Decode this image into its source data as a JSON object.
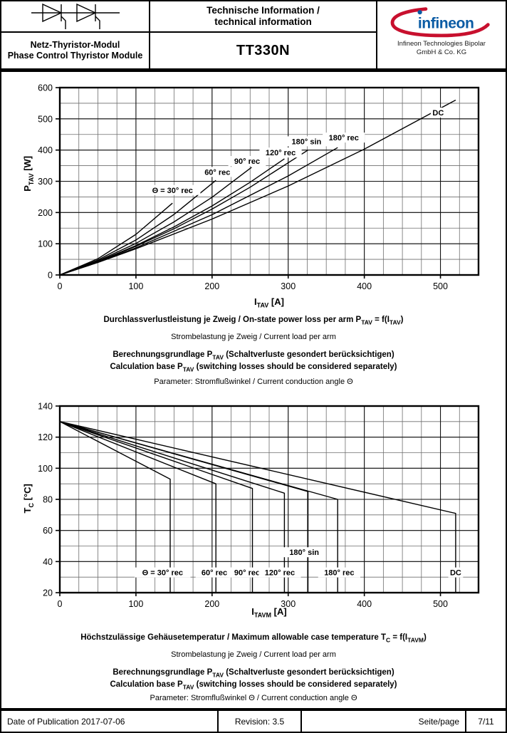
{
  "header": {
    "product_family_de": "Netz-Thyristor-Modul",
    "product_family_en": "Phase Control Thyristor Module",
    "doc_title_de": "Technische Information /",
    "doc_title_en": "technical information",
    "part_number": "TT330N",
    "logo_text": "infineon",
    "company_line1": "Infineon Technologies Bipolar",
    "company_line2": "GmbH & Co. KG"
  },
  "colors": {
    "logo_blue": "#0A5BA4",
    "logo_red": "#C8102E",
    "grid_minor": "#6e6e6e",
    "grid_major": "#111111",
    "curve": "#000000"
  },
  "top_section": {
    "ylabel": {
      "p1": "P",
      "s1": "TAV",
      "p2": " [W]"
    },
    "xlabel": {
      "p1": "I",
      "s1": "TAV",
      "p2": " [A]"
    },
    "caption_main": {
      "p1": "Durchlassverlustleistung je Zweig / On-state power loss per arm P",
      "s1": "TAV",
      "p2": " = f(I",
      "s2": "TAV",
      "p3": ")"
    },
    "caption_sub": "Strombelastung je Zweig / Current load per arm",
    "calc_de": {
      "p1": "Berechnungsgrundlage P",
      "s1": "TAV",
      "p2": " (Schaltverluste gesondert berücksichtigen)"
    },
    "calc_en": {
      "p1": "Calculation base P",
      "s1": "TAV",
      "p2": " (switching losses should be considered separately)"
    },
    "parameter": "Parameter: Stromflußwinkel / Current conduction angle Θ"
  },
  "bottom_section": {
    "ylabel": {
      "p1": "T",
      "s1": "C",
      "p2": " [°C]"
    },
    "xlabel": {
      "p1": "I",
      "s1": "TAVM",
      "p2": " [A]"
    },
    "caption_main": {
      "p1": "Höchstzulässige Gehäusetemperatur / Maximum allowable case temperature T",
      "s1": "C",
      "p2": " = f(I",
      "s2": "TAVM",
      "p3": ")"
    },
    "caption_sub": "Strombelastung je Zweig / Current load per arm",
    "calc_de": {
      "p1": "Berechnungsgrundlage P",
      "s1": "TAV",
      "p2": " (Schaltverluste gesondert berücksichtigen)"
    },
    "calc_en": {
      "p1": "Calculation base P",
      "s1": "TAV",
      "p2": " (switching losses should be considered separately)"
    },
    "parameter": "Parameter: Stromflußwinkel Θ / Current conduction angle Θ"
  },
  "footer": {
    "date": "Date of Publication 2017-07-06",
    "revision": "Revision: 3.5",
    "page_label": "Seite/page",
    "page_number": "7/11"
  },
  "chart_data": [
    {
      "type": "line",
      "title": "On-state power loss per arm PTAV = f(ITAV)",
      "xlabel": "ITAV [A]",
      "ylabel": "PTAV [W]",
      "xlim": [
        0,
        550
      ],
      "ylim": [
        0,
        600
      ],
      "x_ticks": [
        0,
        100,
        200,
        300,
        400,
        500
      ],
      "y_ticks": [
        0,
        100,
        200,
        300,
        400,
        500,
        600
      ],
      "x_minor_step": 25,
      "y_minor_step": 50,
      "grid": true,
      "legend_position": "inline-labels",
      "series": [
        {
          "name": "Θ = 30° rec",
          "points": [
            [
              0,
              0
            ],
            [
              50,
              52
            ],
            [
              100,
              130
            ],
            [
              148,
              230
            ]
          ]
        },
        {
          "name": "60° rec",
          "points": [
            [
              0,
              0
            ],
            [
              50,
              48
            ],
            [
              100,
              112
            ],
            [
              150,
              194
            ],
            [
              205,
              303
            ]
          ]
        },
        {
          "name": "90° rec",
          "points": [
            [
              0,
              0
            ],
            [
              50,
              45
            ],
            [
              100,
              101
            ],
            [
              150,
              170
            ],
            [
              200,
              249
            ],
            [
              252,
              345
            ]
          ]
        },
        {
          "name": "120° rec",
          "points": [
            [
              0,
              0
            ],
            [
              50,
              43
            ],
            [
              100,
              94
            ],
            [
              150,
              154
            ],
            [
              200,
              221
            ],
            [
              250,
              297
            ],
            [
              295,
              372
            ]
          ]
        },
        {
          "name": "180° sin",
          "points": [
            [
              0,
              0
            ],
            [
              50,
              42
            ],
            [
              100,
              92
            ],
            [
              150,
              148
            ],
            [
              200,
              211
            ],
            [
              250,
              281
            ],
            [
              326,
              400
            ]
          ]
        },
        {
          "name": "180° rec",
          "points": [
            [
              0,
              0
            ],
            [
              50,
              41
            ],
            [
              100,
              87
            ],
            [
              200,
              193
            ],
            [
              300,
              317
            ],
            [
              365,
              408
            ]
          ]
        },
        {
          "name": "DC",
          "points": [
            [
              0,
              0
            ],
            [
              50,
              40
            ],
            [
              100,
              84
            ],
            [
              200,
              179
            ],
            [
              300,
              285
            ],
            [
              400,
              403
            ],
            [
              520,
              560
            ]
          ]
        }
      ],
      "labels": [
        {
          "text": "Θ = 30° rec",
          "x": 148,
          "y": 272
        },
        {
          "text": "60° rec",
          "x": 207,
          "y": 330
        },
        {
          "text": "90° rec",
          "x": 246,
          "y": 365
        },
        {
          "text": "120° rec",
          "x": 290,
          "y": 392
        },
        {
          "text": "180° sin",
          "x": 324,
          "y": 428
        },
        {
          "text": "180° rec",
          "x": 373,
          "y": 440
        },
        {
          "text": "DC",
          "x": 497,
          "y": 520
        }
      ]
    },
    {
      "type": "line",
      "title": "Maximum allowable case temperature TC = f(ITAVM)",
      "xlabel": "ITAVM [A]",
      "ylabel": "TC [°C]",
      "xlim": [
        0,
        550
      ],
      "ylim": [
        20,
        140
      ],
      "x_ticks": [
        0,
        100,
        200,
        300,
        400,
        500
      ],
      "y_ticks": [
        20,
        40,
        60,
        80,
        100,
        120,
        140
      ],
      "x_minor_step": 25,
      "y_minor_step": 10,
      "grid": true,
      "legend_position": "inline-labels",
      "series": [
        {
          "name": "Θ = 30° rec",
          "points": [
            [
              0,
              130
            ],
            [
              145,
              93
            ],
            [
              145,
              20
            ]
          ]
        },
        {
          "name": "60° rec",
          "points": [
            [
              0,
              130
            ],
            [
              205,
              90
            ],
            [
              205,
              20
            ]
          ]
        },
        {
          "name": "90° rec",
          "points": [
            [
              0,
              130
            ],
            [
              253,
              87
            ],
            [
              253,
              20
            ]
          ]
        },
        {
          "name": "120° rec",
          "points": [
            [
              0,
              130
            ],
            [
              295,
              84
            ],
            [
              295,
              20
            ]
          ]
        },
        {
          "name": "180° sin",
          "points": [
            [
              0,
              130
            ],
            [
              326,
              85
            ],
            [
              326,
              20
            ]
          ]
        },
        {
          "name": "180° rec",
          "points": [
            [
              0,
              130
            ],
            [
              365,
              80
            ],
            [
              365,
              20
            ]
          ]
        },
        {
          "name": "DC",
          "points": [
            [
              0,
              130
            ],
            [
              520,
              71
            ],
            [
              520,
              20
            ]
          ]
        }
      ],
      "labels": [
        {
          "text": "Θ = 30° rec",
          "x": 135,
          "y": 33
        },
        {
          "text": "60° rec",
          "x": 203,
          "y": 33
        },
        {
          "text": "90° rec",
          "x": 246,
          "y": 33
        },
        {
          "text": "120° rec",
          "x": 289,
          "y": 33
        },
        {
          "text": "180° sin",
          "x": 321,
          "y": 46
        },
        {
          "text": "180° rec",
          "x": 367,
          "y": 33
        },
        {
          "text": "DC",
          "x": 520,
          "y": 33
        }
      ]
    }
  ]
}
